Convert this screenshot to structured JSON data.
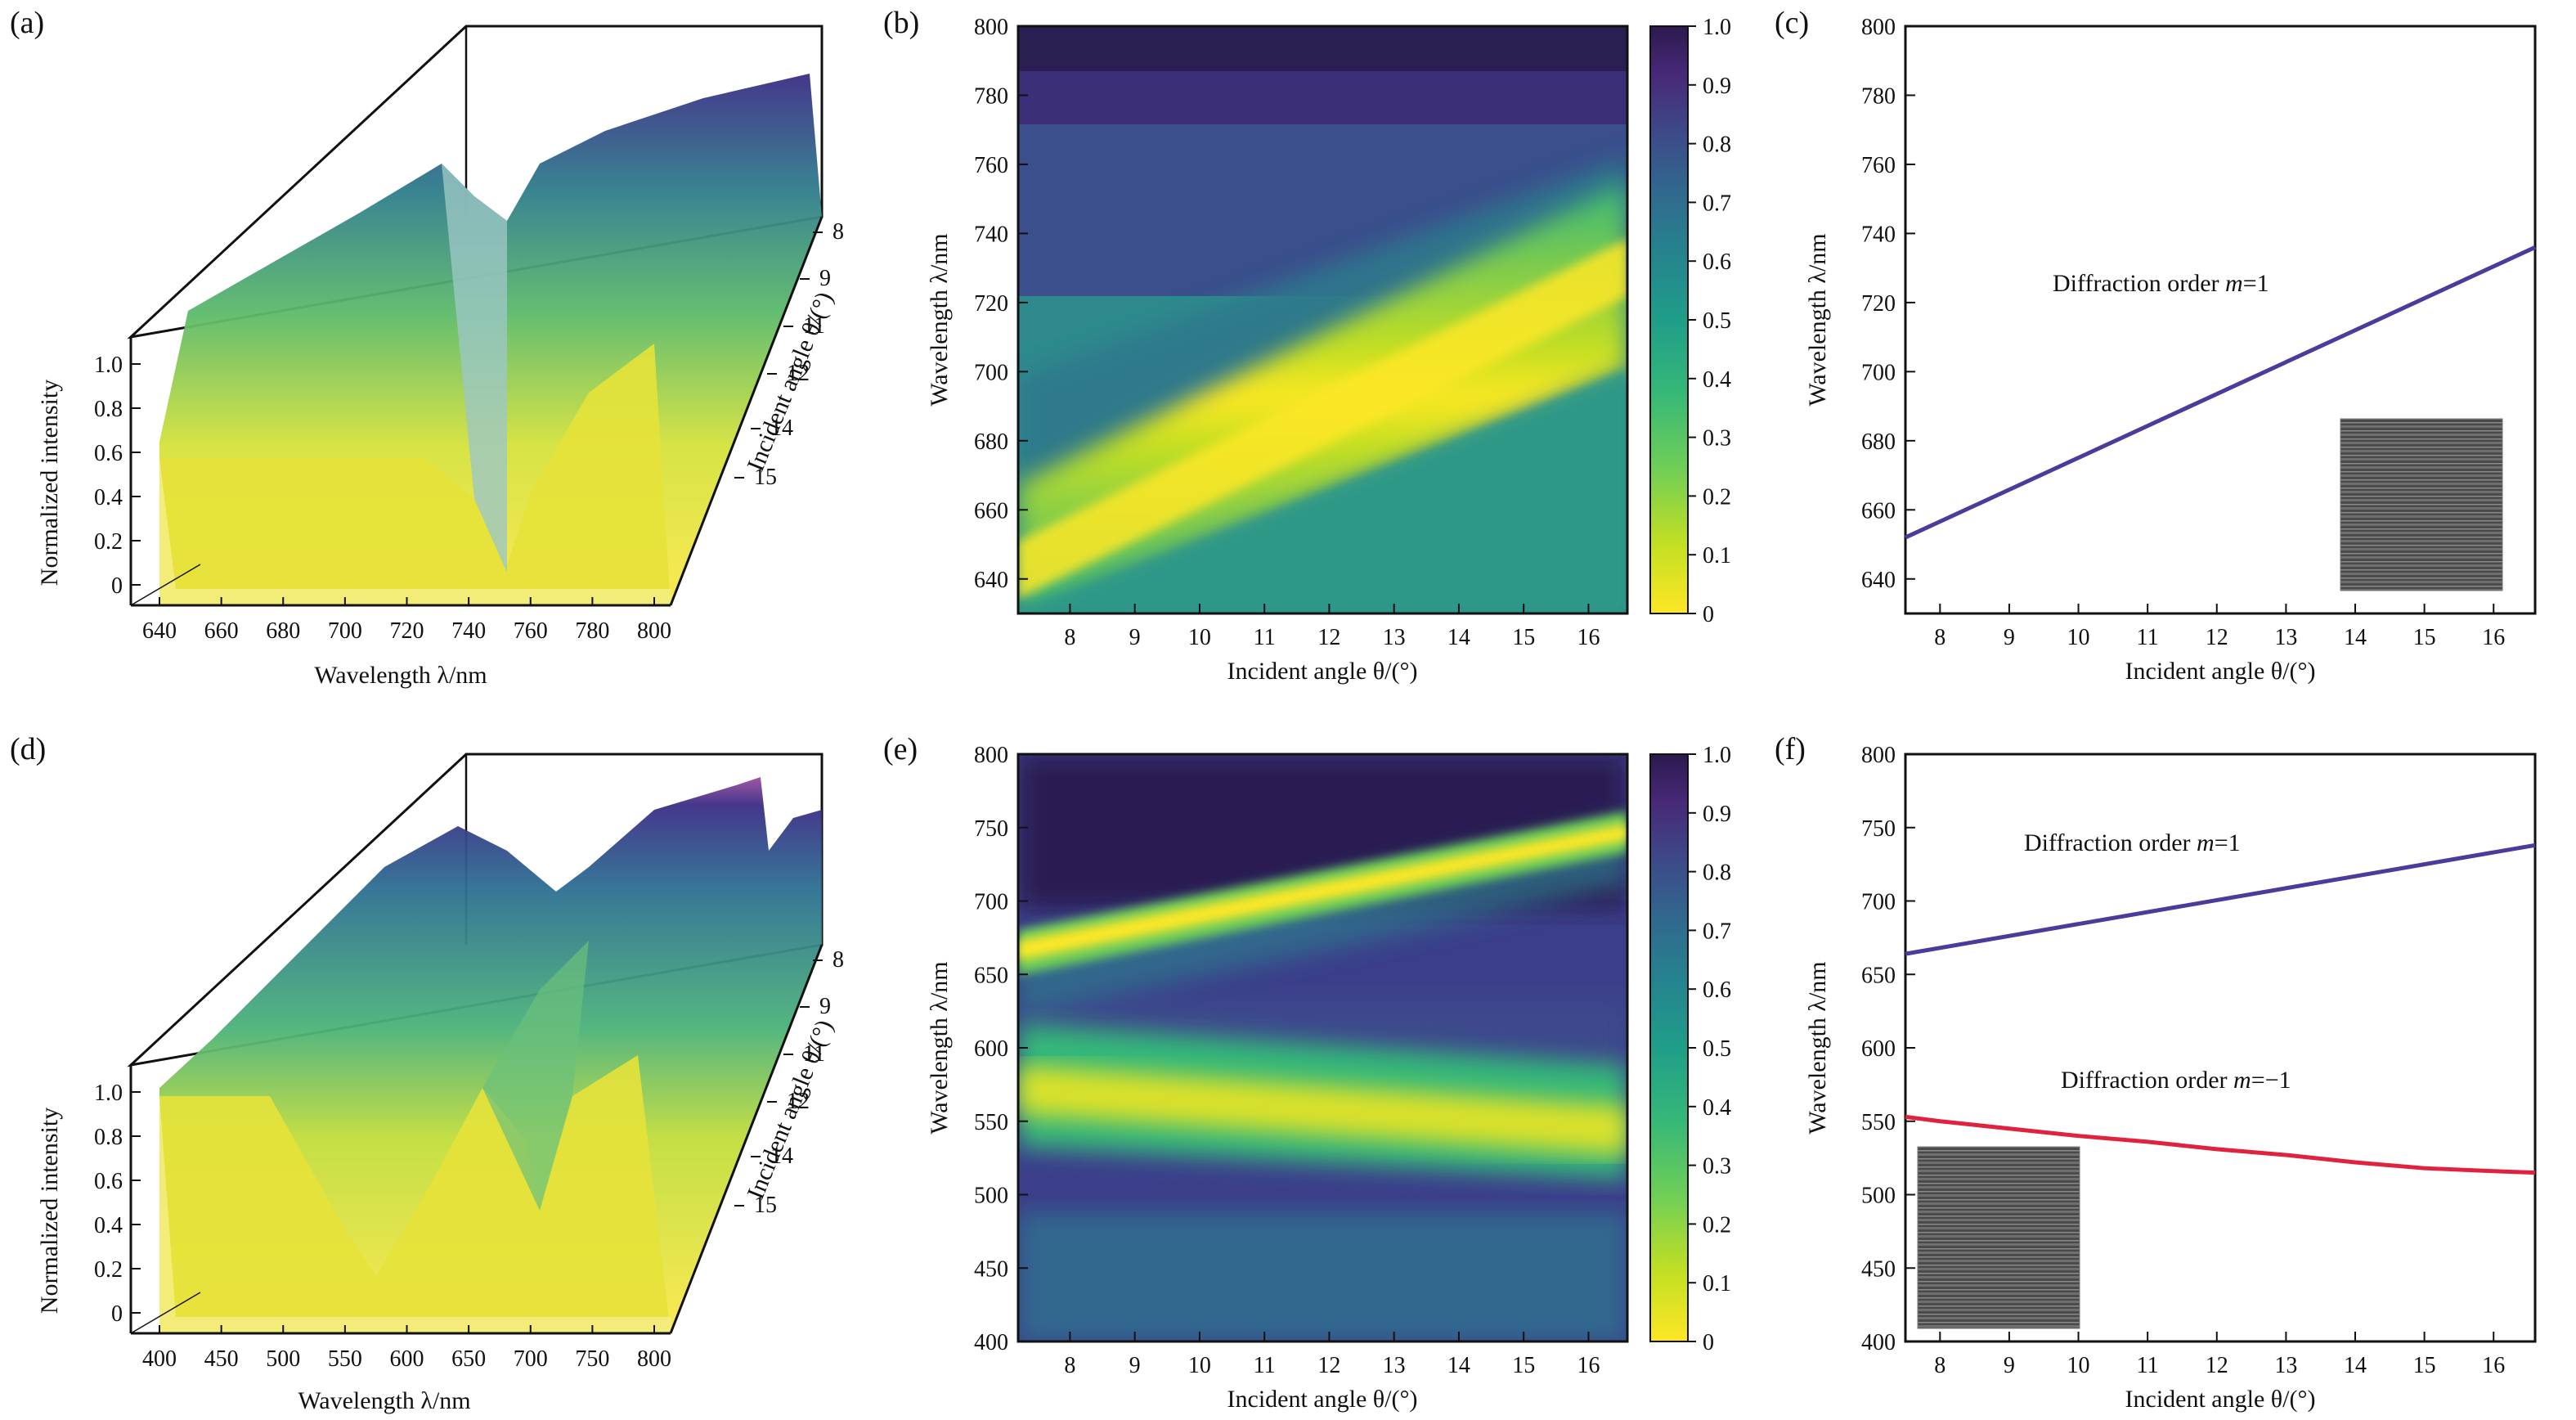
{
  "panels": [
    {
      "id": "a",
      "label": "(a)",
      "xlabel": "Wavelength λ/nm",
      "ylabel": "Normalized intensity",
      "zlabel": "Incident angle θ/(°)",
      "xticks": [
        640,
        660,
        680,
        700,
        720,
        740,
        760,
        780,
        800
      ],
      "yticks": [
        0,
        0.2,
        0.4,
        0.6,
        0.8,
        1.0
      ],
      "angle_ticks": [
        8,
        9,
        11,
        12,
        14,
        15
      ]
    },
    {
      "id": "b",
      "label": "(b)",
      "xlabel": "Incident angle θ/(°)",
      "ylabel": "Wavelength λ/nm",
      "colorbar_ticks": [
        0,
        0.1,
        0.2,
        0.3,
        0.4,
        0.5,
        0.6,
        0.7,
        0.8,
        0.9,
        1.0
      ]
    },
    {
      "id": "c",
      "label": "(c)",
      "xlabel": "Incident angle θ/(°)",
      "ylabel": "Wavelength λ/nm",
      "annotation": "Diffraction order m=1"
    },
    {
      "id": "d",
      "label": "(d)",
      "xlabel": "Wavelength λ/nm",
      "ylabel": "Normalized intensity",
      "zlabel": "Incident angle θ/(°)",
      "xticks": [
        400,
        450,
        500,
        550,
        600,
        650,
        700,
        750,
        800
      ],
      "yticks": [
        0,
        0.2,
        0.4,
        0.6,
        0.8,
        1.0
      ],
      "angle_ticks": [
        8,
        9,
        11,
        12,
        14,
        15
      ]
    },
    {
      "id": "e",
      "label": "(e)",
      "xlabel": "Incident angle θ/(°)",
      "ylabel": "Wavelength λ/nm",
      "colorbar_ticks": [
        0,
        0.1,
        0.2,
        0.3,
        0.4,
        0.5,
        0.6,
        0.7,
        0.8,
        0.9,
        1.0
      ]
    },
    {
      "id": "f",
      "label": "(f)",
      "xlabel": "Incident angle θ/(°)",
      "ylabel": "Wavelength λ/nm",
      "annotations": [
        "Diffraction order m=1",
        "Diffraction order m=−1"
      ]
    }
  ],
  "colors": {
    "line_m1": "#4b3c9c",
    "line_m_1": "#e0223f",
    "frame": "#111111"
  },
  "chart_data": [
    {
      "panel": "b",
      "type": "heatmap",
      "xlim": [
        7.2,
        16.6
      ],
      "ylim": [
        630,
        800
      ],
      "xticks": [
        8,
        9,
        10,
        11,
        12,
        13,
        14,
        15,
        16
      ],
      "yticks": [
        640,
        660,
        680,
        700,
        720,
        740,
        760,
        780,
        800
      ],
      "ridges": [
        {
          "type": "band",
          "x": [
            7.2,
            16.6
          ],
          "y": [
            650,
            745
          ]
        }
      ]
    },
    {
      "panel": "c",
      "type": "line",
      "xlim": [
        7.5,
        16.6
      ],
      "ylim": [
        630,
        800
      ],
      "xticks": [
        8,
        9,
        10,
        11,
        12,
        13,
        14,
        15,
        16
      ],
      "yticks": [
        640,
        660,
        680,
        700,
        720,
        740,
        760,
        780,
        800
      ],
      "series": [
        {
          "x": [
            7.5,
            16.6
          ],
          "y": [
            652,
            736
          ]
        }
      ]
    },
    {
      "panel": "e",
      "type": "heatmap",
      "xlim": [
        7.2,
        16.6
      ],
      "ylim": [
        400,
        800
      ],
      "xticks": [
        8,
        9,
        10,
        11,
        12,
        13,
        14,
        15,
        16
      ],
      "yticks": [
        400,
        450,
        500,
        550,
        600,
        650,
        700,
        750,
        800
      ],
      "ridges": [
        {
          "type": "narrow",
          "x": [
            7.2,
            16.6
          ],
          "y": [
            672,
            742
          ]
        },
        {
          "type": "broad",
          "x": [
            7.2,
            16.6
          ],
          "y": [
            555,
            525
          ]
        }
      ]
    },
    {
      "panel": "f",
      "type": "line",
      "xlim": [
        7.5,
        16.6
      ],
      "ylim": [
        400,
        800
      ],
      "xticks": [
        8,
        9,
        10,
        11,
        12,
        13,
        14,
        15,
        16
      ],
      "yticks": [
        400,
        450,
        500,
        550,
        600,
        650,
        700,
        750,
        800
      ],
      "series": [
        {
          "x": [
            7.5,
            16.6
          ],
          "y": [
            664,
            738
          ]
        },
        {
          "x": [
            7.5,
            8,
            9,
            10,
            11,
            12,
            13,
            14,
            15,
            16,
            16.6
          ],
          "y": [
            553,
            550,
            545,
            540,
            536,
            531,
            527,
            522,
            518,
            516,
            515
          ]
        }
      ]
    }
  ]
}
